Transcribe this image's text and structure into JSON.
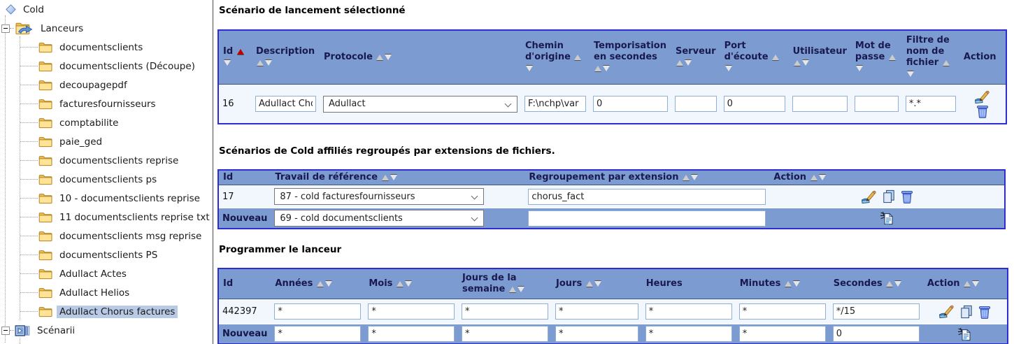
{
  "colors": {
    "header_blue": "#7c9cd1",
    "row_light": "#f2f7fd",
    "table_border_blue": "#2d2dd0",
    "tree_selected": "#b9cae6"
  },
  "tree": {
    "items": [
      {
        "label": "Cold",
        "icon": "diamond",
        "level": 0
      },
      {
        "label": "Lanceurs",
        "icon": "launchers",
        "level": 1,
        "expander": true
      },
      {
        "label": "documentsclients",
        "icon": "folder",
        "level": 2
      },
      {
        "label": "documentsclients (Découpe)",
        "icon": "folder",
        "level": 2
      },
      {
        "label": "decoupagepdf",
        "icon": "folder",
        "level": 2
      },
      {
        "label": "facturesfournisseurs",
        "icon": "folder",
        "level": 2
      },
      {
        "label": "comptabilite",
        "icon": "folder",
        "level": 2
      },
      {
        "label": "paie_ged",
        "icon": "folder",
        "level": 2
      },
      {
        "label": "documentsclients reprise",
        "icon": "folder",
        "level": 2
      },
      {
        "label": "documentsclients ps",
        "icon": "folder",
        "level": 2
      },
      {
        "label": "10 - documentsclients reprise",
        "icon": "folder",
        "level": 2
      },
      {
        "label": "11 documentsclients reprise txt",
        "icon": "folder",
        "level": 2
      },
      {
        "label": "documentsclients msg reprise",
        "icon": "folder",
        "level": 2
      },
      {
        "label": "documentsclients PS",
        "icon": "folder",
        "level": 2
      },
      {
        "label": "Adullact Actes",
        "icon": "folder",
        "level": 2
      },
      {
        "label": "Adullact Helios",
        "icon": "folder",
        "level": 2
      },
      {
        "label": "Adullact Chorus factures",
        "icon": "folder",
        "level": 2,
        "selected": true
      },
      {
        "label": "Scénarii",
        "icon": "scenarii",
        "level": 1,
        "expander": true
      },
      {
        "label": "",
        "icon": "folder",
        "level": 2,
        "clipped": true
      }
    ]
  },
  "sections": [
    {
      "title": "Scénario de lancement sélectionné",
      "headers": [
        {
          "label": "Id",
          "sort": "active"
        },
        {
          "label": "Description",
          "sort": "both"
        },
        {
          "label": "Protocole",
          "sort": "both"
        },
        {
          "label": "Chemin d'origine",
          "sort": "both"
        },
        {
          "label": "Temporisation en secondes",
          "sort": "both"
        },
        {
          "label": "Serveur",
          "sort": "both"
        },
        {
          "label": "Port d'écoute",
          "sort": "both"
        },
        {
          "label": "Utilisateur",
          "sort": "both"
        },
        {
          "label": "Mot de passe",
          "sort": "both"
        },
        {
          "label": "Filtre de nom de fichier",
          "sort": "both"
        },
        {
          "label": "Action",
          "sort": "none"
        }
      ],
      "rows": [
        {
          "cells": [
            {
              "type": "label",
              "value": "16"
            },
            {
              "type": "input",
              "value": "Adullact Choru"
            },
            {
              "type": "select",
              "value": "Adullact"
            },
            {
              "type": "input",
              "value": "F:\\nchp\\var"
            },
            {
              "type": "input",
              "value": "0"
            },
            {
              "type": "input",
              "value": ""
            },
            {
              "type": "input",
              "value": "0"
            },
            {
              "type": "input",
              "value": ""
            },
            {
              "type": "input",
              "value": ""
            },
            {
              "type": "input",
              "value": "*.*"
            },
            {
              "type": "actions",
              "icons": [
                "edit",
                "delete"
              ]
            }
          ]
        }
      ]
    },
    {
      "title": "Scénarios de Cold affiliés regroupés par extensions de fichiers.",
      "headers": [
        {
          "label": "Id",
          "sort": "none"
        },
        {
          "label": "Travail de référence",
          "sort": "both"
        },
        {
          "label": "Regroupement par extension",
          "sort": "both"
        },
        {
          "label": "Action",
          "sort": "both"
        }
      ],
      "rows": [
        {
          "cells": [
            {
              "type": "label",
              "value": "17"
            },
            {
              "type": "select",
              "value": "87 - cold facturesfournisseurs"
            },
            {
              "type": "input",
              "value": "chorus_fact"
            },
            {
              "type": "actions",
              "icons": [
                "edit",
                "copy",
                "delete"
              ]
            }
          ]
        },
        {
          "highlight": true,
          "cells": [
            {
              "type": "label",
              "value": "Nouveau"
            },
            {
              "type": "select",
              "value": "69 - cold documentsclients"
            },
            {
              "type": "input",
              "value": ""
            },
            {
              "type": "actions",
              "icons": [
                "new"
              ]
            }
          ]
        }
      ]
    },
    {
      "title": "Programmer le lanceur",
      "headers": [
        {
          "label": "Id",
          "sort": "none"
        },
        {
          "label": "Années",
          "sort": "both"
        },
        {
          "label": "Mois",
          "sort": "both"
        },
        {
          "label": "Jours de la semaine",
          "sort": "both"
        },
        {
          "label": "Jours",
          "sort": "both"
        },
        {
          "label": "Heures",
          "sort": "none"
        },
        {
          "label": "Minutes",
          "sort": "both"
        },
        {
          "label": "Secondes",
          "sort": "both"
        },
        {
          "label": "Action",
          "sort": "both"
        }
      ],
      "rows": [
        {
          "cells": [
            {
              "type": "label",
              "value": "442397"
            },
            {
              "type": "input",
              "value": "*"
            },
            {
              "type": "input",
              "value": "*"
            },
            {
              "type": "input",
              "value": "*"
            },
            {
              "type": "input",
              "value": "*"
            },
            {
              "type": "input",
              "value": "*"
            },
            {
              "type": "input",
              "value": "*"
            },
            {
              "type": "input",
              "value": "*/15"
            },
            {
              "type": "actions",
              "icons": [
                "edit",
                "copy",
                "delete"
              ]
            }
          ]
        },
        {
          "highlight": true,
          "cells": [
            {
              "type": "label",
              "value": "Nouveau"
            },
            {
              "type": "input",
              "value": "*"
            },
            {
              "type": "input",
              "value": "*"
            },
            {
              "type": "input",
              "value": "*"
            },
            {
              "type": "input",
              "value": "*"
            },
            {
              "type": "input",
              "value": "*"
            },
            {
              "type": "input",
              "value": "*"
            },
            {
              "type": "input",
              "value": "0"
            },
            {
              "type": "actions",
              "icons": [
                "new"
              ]
            }
          ]
        }
      ]
    }
  ]
}
